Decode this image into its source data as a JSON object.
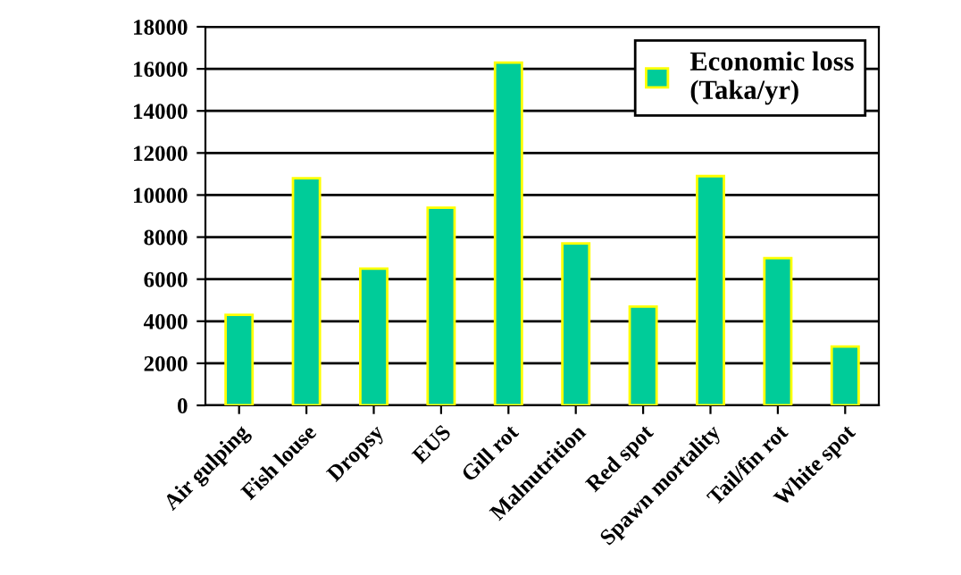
{
  "chart_data": {
    "type": "bar",
    "categories": [
      "Air gulping",
      "Fish louse",
      "Dropsy",
      "EUS",
      "Gill rot",
      "Malnutrition",
      "Red spot",
      "Spawn mortality",
      "Tail/fin rot",
      "White spot"
    ],
    "series": [
      {
        "name": "Economic loss\n(Taka/yr)",
        "color": "#00cc99",
        "values": [
          4300,
          10800,
          6500,
          9400,
          16300,
          7700,
          4700,
          10900,
          7000,
          2800
        ]
      }
    ],
    "ylim": [
      0,
      18000
    ],
    "yticks": [
      0,
      2000,
      4000,
      6000,
      8000,
      10000,
      12000,
      14000,
      16000,
      18000
    ],
    "grid": "y",
    "legend": "top right"
  }
}
